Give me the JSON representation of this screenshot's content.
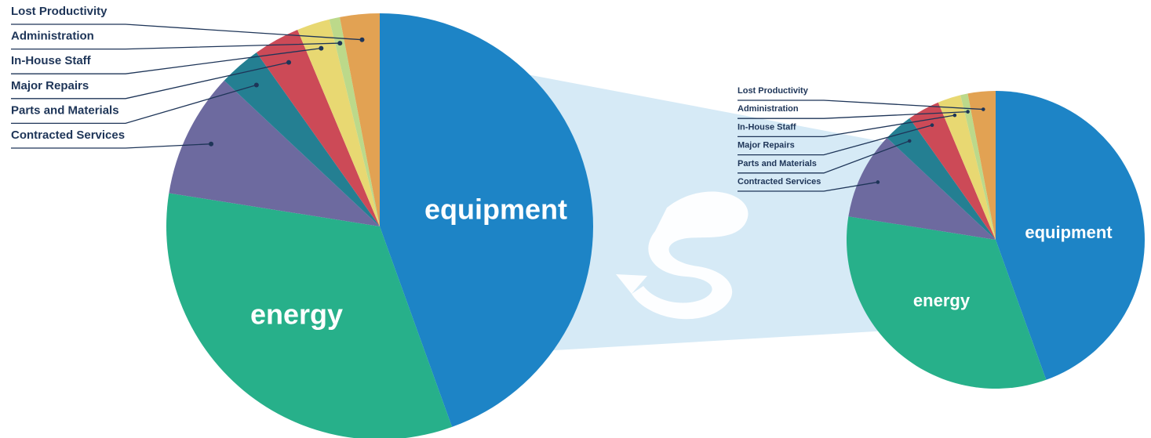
{
  "chart_data": [
    {
      "type": "pie",
      "slices": [
        {
          "label": "equipment",
          "value": 44.5,
          "color": "#1d84c6"
        },
        {
          "label": "energy",
          "value": 33.0,
          "color": "#27b08a"
        },
        {
          "label": "Contracted Services",
          "value": 9.5,
          "color": "#6d6a9f"
        },
        {
          "label": "Parts and Materials",
          "value": 3.2,
          "color": "#247f92"
        },
        {
          "label": "Major Repairs",
          "value": 3.5,
          "color": "#cc4a57"
        },
        {
          "label": "In-House Staff",
          "value": 2.5,
          "color": "#e8d872"
        },
        {
          "label": "Administration",
          "value": 0.8,
          "color": "#bcd98a"
        },
        {
          "label": "Lost Productivity",
          "value": 3.0,
          "color": "#e2a253"
        }
      ]
    },
    {
      "type": "pie",
      "slices": [
        {
          "label": "equipment",
          "value": 44.5,
          "color": "#1d84c6"
        },
        {
          "label": "energy",
          "value": 33.0,
          "color": "#27b08a"
        },
        {
          "label": "Contracted Services",
          "value": 9.5,
          "color": "#6d6a9f"
        },
        {
          "label": "Parts and Materials",
          "value": 3.2,
          "color": "#247f92"
        },
        {
          "label": "Major Repairs",
          "value": 3.5,
          "color": "#cc4a57"
        },
        {
          "label": "In-House Staff",
          "value": 2.5,
          "color": "#e8d872"
        },
        {
          "label": "Administration",
          "value": 0.8,
          "color": "#bcd98a"
        },
        {
          "label": "Lost Productivity",
          "value": 3.0,
          "color": "#e2a253"
        }
      ]
    }
  ],
  "connector_color": "#d6eaf6",
  "logo": "swirl-arrow-icon"
}
